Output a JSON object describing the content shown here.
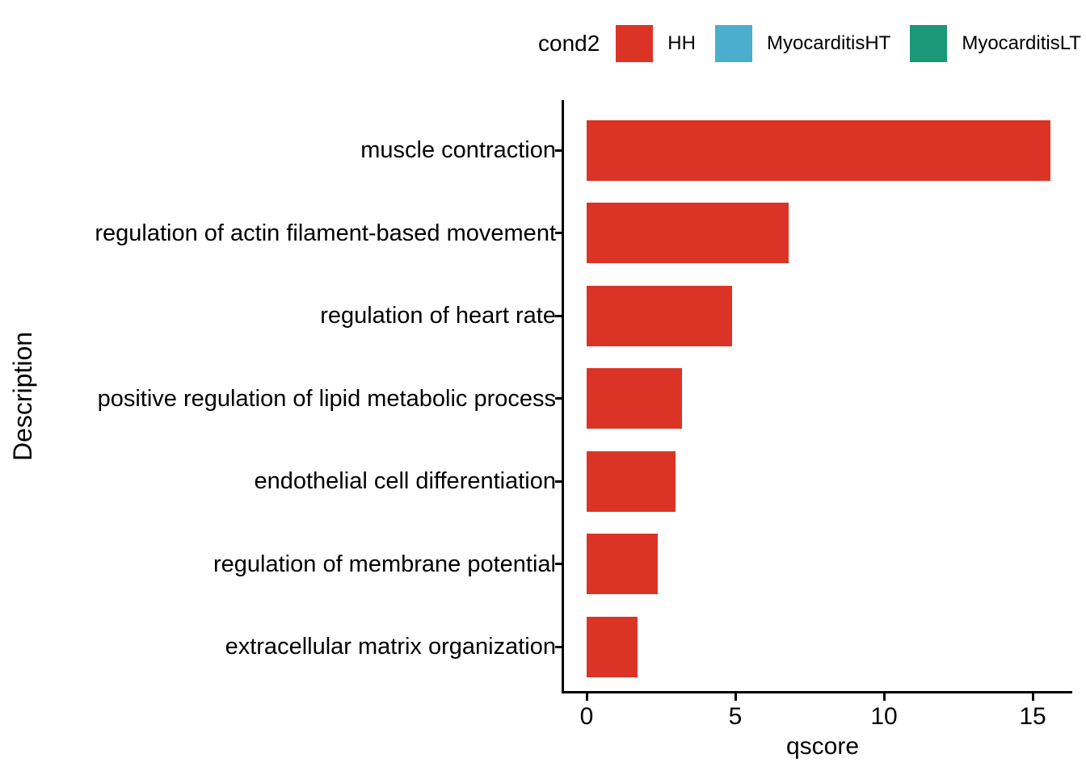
{
  "legend": {
    "title": "cond2",
    "items": [
      {
        "label": "HH",
        "color": "#db3427"
      },
      {
        "label": "MyocarditisHT",
        "color": "#4baecc"
      },
      {
        "label": "MyocarditisLT",
        "color": "#1b9877"
      }
    ]
  },
  "chart_data": {
    "type": "bar",
    "orientation": "horizontal",
    "title": "",
    "xlabel": "qscore",
    "ylabel": "Description",
    "legend_title": "cond2",
    "legend_position": "top",
    "grid": false,
    "series": [
      {
        "name": "HH",
        "color": "#db3427",
        "values": [
          15.6,
          6.8,
          4.9,
          3.2,
          3.0,
          2.4,
          1.7
        ]
      }
    ],
    "categories": [
      "muscle contraction",
      "regulation of actin filament-based movement",
      "regulation of heart rate",
      "positive regulation of lipid metabolic process",
      "endothelial cell differentiation",
      "regulation of membrane potential",
      "extracellular matrix organization"
    ],
    "x_ticks": [
      0,
      5,
      10,
      15
    ],
    "xlim": [
      0,
      16.3
    ]
  }
}
